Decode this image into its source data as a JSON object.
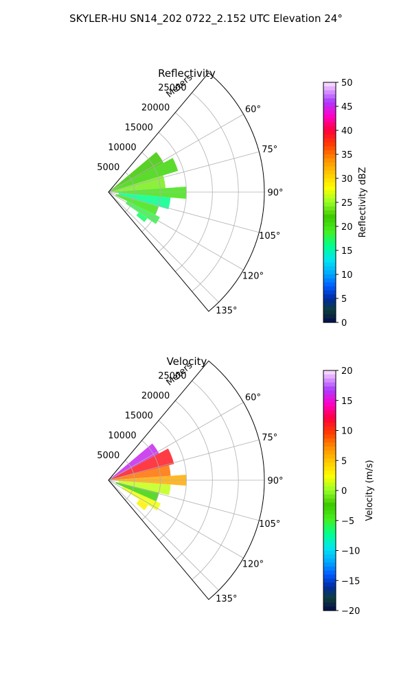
{
  "title": "SKYLER-HU  SN14_202  0722_2.152 UTC Elevation 24°",
  "chart_data": [
    {
      "type": "heatmap",
      "title": "Reflectivity",
      "radial_label": "Meters",
      "theta_range_deg": [
        40,
        140
      ],
      "r_max": 30000,
      "r_ticks": [
        5000,
        10000,
        15000,
        20000,
        25000
      ],
      "r_tick_labels": [
        "5000",
        "10000",
        "15000",
        "20000",
        "25000"
      ],
      "theta_ticks": [
        60,
        75,
        90,
        105,
        120,
        135
      ],
      "theta_tick_labels": [
        "60°",
        "75°",
        "90°",
        "105°",
        "120°",
        "135°"
      ],
      "colorbar": {
        "label": "Reflectivity dBZ",
        "min": 0,
        "max": 50,
        "ticks": [
          0,
          5,
          10,
          15,
          20,
          25,
          30,
          35,
          40,
          45,
          50
        ],
        "tick_labels": [
          "0",
          "5",
          "10",
          "15",
          "20",
          "25",
          "30",
          "35",
          "40",
          "45",
          "50"
        ]
      },
      "sectors": [
        {
          "az": [
            50,
            62
          ],
          "r": [
            0,
            12000
          ],
          "value": 22
        },
        {
          "az": [
            62,
            73
          ],
          "r": [
            0,
            14000
          ],
          "value": 21
        },
        {
          "az": [
            73,
            86
          ],
          "r": [
            0,
            11000
          ],
          "value": 24
        },
        {
          "az": [
            86,
            95
          ],
          "r": [
            1000,
            15000
          ],
          "value": 20
        },
        {
          "az": [
            95,
            106
          ],
          "r": [
            2000,
            12000
          ],
          "value": 16
        },
        {
          "az": [
            106,
            116
          ],
          "r": [
            1500,
            10000
          ],
          "value": 20
        },
        {
          "az": [
            116,
            124
          ],
          "r": [
            4000,
            11000
          ],
          "value": 18
        },
        {
          "az": [
            124,
            130
          ],
          "r": [
            7000,
            9000
          ],
          "value": 17
        }
      ]
    },
    {
      "type": "heatmap",
      "title": "Velocity",
      "radial_label": "Meters",
      "theta_range_deg": [
        40,
        140
      ],
      "r_max": 30000,
      "r_ticks": [
        5000,
        10000,
        15000,
        20000,
        25000
      ],
      "r_tick_labels": [
        "5000",
        "10000",
        "15000",
        "20000",
        "25000"
      ],
      "theta_ticks": [
        60,
        75,
        90,
        105,
        120,
        135
      ],
      "theta_tick_labels": [
        "60°",
        "75°",
        "90°",
        "105°",
        "120°",
        "135°"
      ],
      "colorbar": {
        "label": "Velocity (m/s)",
        "min": -20,
        "max": 20,
        "ticks": [
          -20,
          -15,
          -10,
          -5,
          0,
          5,
          10,
          15,
          20
        ],
        "tick_labels": [
          "−20",
          "−15",
          "−10",
          "−5",
          "0",
          "5",
          "10",
          "15",
          "20"
        ]
      },
      "sectors": [
        {
          "az": [
            50,
            62
          ],
          "r": [
            0,
            11000
          ],
          "value": 16
        },
        {
          "az": [
            62,
            76
          ],
          "r": [
            0,
            13000
          ],
          "value": 11
        },
        {
          "az": [
            76,
            86
          ],
          "r": [
            0,
            12000
          ],
          "value": 8
        },
        {
          "az": [
            86,
            94
          ],
          "r": [
            1000,
            15000
          ],
          "value": 6
        },
        {
          "az": [
            94,
            104
          ],
          "r": [
            2000,
            12000
          ],
          "value": 1
        },
        {
          "az": [
            104,
            114
          ],
          "r": [
            1500,
            10000
          ],
          "value": -3
        },
        {
          "az": [
            114,
            122
          ],
          "r": [
            3000,
            11000
          ],
          "value": 2
        },
        {
          "az": [
            122,
            130
          ],
          "r": [
            7000,
            9000
          ],
          "value": 3
        }
      ]
    }
  ]
}
